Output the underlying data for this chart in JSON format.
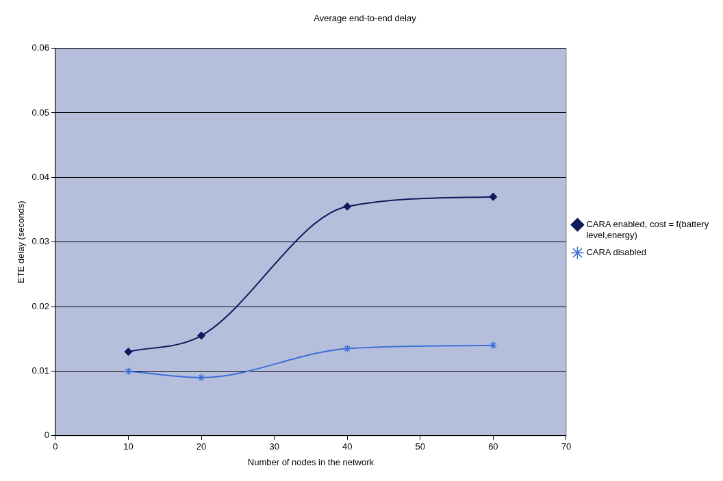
{
  "chart_data": {
    "type": "line",
    "title": "Average end-to-end delay",
    "xlabel": "Number of nodes in the network",
    "ylabel": "ETE delay (seconds)",
    "x": [
      10,
      20,
      40,
      60
    ],
    "series": [
      {
        "name": "CARA enabled, cost = f(battery level,energy)",
        "color": "#0d1a5c",
        "values": [
          0.013,
          0.0155,
          0.0355,
          0.037
        ],
        "marker": "diamond"
      },
      {
        "name": "CARA disabled",
        "color": "#3a6fd8",
        "values": [
          0.01,
          0.009,
          0.0135,
          0.014
        ],
        "marker": "cross"
      }
    ],
    "xlim": [
      0,
      70
    ],
    "xticks": [
      0,
      10,
      20,
      30,
      40,
      50,
      60,
      70
    ],
    "ylim": [
      0,
      0.06
    ],
    "yticks": [
      0,
      0.01,
      0.02,
      0.03,
      0.04,
      0.05,
      0.06
    ],
    "grid": "y",
    "legend": "right",
    "line_style": "solid"
  }
}
